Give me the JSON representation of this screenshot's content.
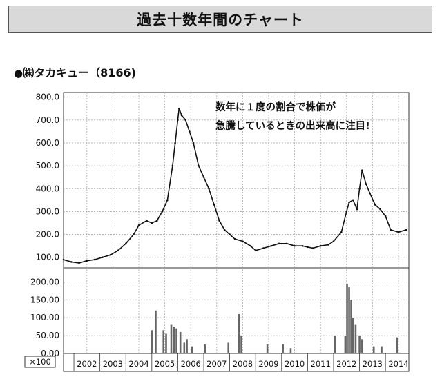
{
  "header": {
    "title": "過去十数年間のチャート"
  },
  "stock": {
    "title": "㈱タカキュー（8166)"
  },
  "annotation": {
    "line1": "数年に１度の割合で株価が",
    "line2": "急騰しているときの出来高に注目!"
  },
  "chart_data": [
    {
      "type": "line",
      "title": "㈱タカキュー（8166)",
      "xlabel": "",
      "ylabel": "",
      "x_tick_labels": [
        "2002",
        "2003",
        "2004",
        "2005",
        "2006",
        "2007",
        "2008",
        "2009",
        "2010",
        "2011",
        "2012",
        "2013",
        "2014"
      ],
      "y_tick_labels": [
        "100.0",
        "200.0",
        "300.0",
        "400.0",
        "500.0",
        "600.0",
        "700.0",
        "800.0"
      ],
      "ylim": [
        60,
        820
      ],
      "xlim": [
        2001.6,
        2014.9
      ],
      "grid": true,
      "series": [
        {
          "x": [
            2001.6,
            2001.9,
            2002.2,
            2002.5,
            2002.8,
            2003.1,
            2003.4,
            2003.7,
            2004.0,
            2004.3,
            2004.5,
            2004.8,
            2005.0,
            2005.2,
            2005.4,
            2005.6,
            2005.8,
            2005.9,
            2006.0,
            2006.05,
            2006.15,
            2006.3,
            2006.45,
            2006.6,
            2006.8,
            2007.0,
            2007.2,
            2007.4,
            2007.6,
            2007.8,
            2008.0,
            2008.2,
            2008.5,
            2008.8,
            2009.0,
            2009.3,
            2009.6,
            2009.9,
            2010.2,
            2010.5,
            2010.8,
            2011.0,
            2011.2,
            2011.5,
            2011.8,
            2012.0,
            2012.3,
            2012.5,
            2012.6,
            2012.75,
            2012.9,
            2013.0,
            2013.1,
            2013.25,
            2013.4,
            2013.6,
            2013.8,
            2014.0,
            2014.2,
            2014.5,
            2014.8
          ],
          "values": [
            90,
            80,
            75,
            85,
            90,
            100,
            110,
            130,
            160,
            200,
            240,
            260,
            250,
            260,
            300,
            350,
            500,
            600,
            700,
            750,
            720,
            700,
            650,
            600,
            500,
            450,
            400,
            330,
            260,
            220,
            200,
            180,
            170,
            150,
            130,
            140,
            150,
            160,
            160,
            150,
            150,
            145,
            140,
            150,
            155,
            170,
            210,
            300,
            340,
            350,
            310,
            400,
            480,
            420,
            380,
            330,
            310,
            280,
            220,
            210,
            220
          ]
        }
      ]
    },
    {
      "type": "bar",
      "ylabel_unit": "×100",
      "y_tick_labels": [
        "0.00",
        "50.00",
        "100.00",
        "150.00",
        "200.00"
      ],
      "ylim": [
        0,
        220
      ],
      "grid": true,
      "series": [
        {
          "x": [
            2005.0,
            2005.15,
            2005.45,
            2005.55,
            2005.75,
            2005.85,
            2005.95,
            2006.1,
            2006.25,
            2006.35,
            2006.55,
            2007.05,
            2007.95,
            2008.35,
            2008.45,
            2009.45,
            2010.05,
            2010.35,
            2012.05,
            2012.45,
            2012.52,
            2012.6,
            2012.68,
            2012.75,
            2012.85,
            2013.0,
            2013.1,
            2013.55,
            2013.85,
            2014.45
          ],
          "values": [
            65,
            120,
            65,
            55,
            80,
            75,
            70,
            60,
            30,
            40,
            20,
            25,
            30,
            110,
            50,
            25,
            25,
            15,
            50,
            50,
            195,
            185,
            150,
            100,
            80,
            50,
            40,
            20,
            20,
            45
          ]
        }
      ]
    }
  ]
}
